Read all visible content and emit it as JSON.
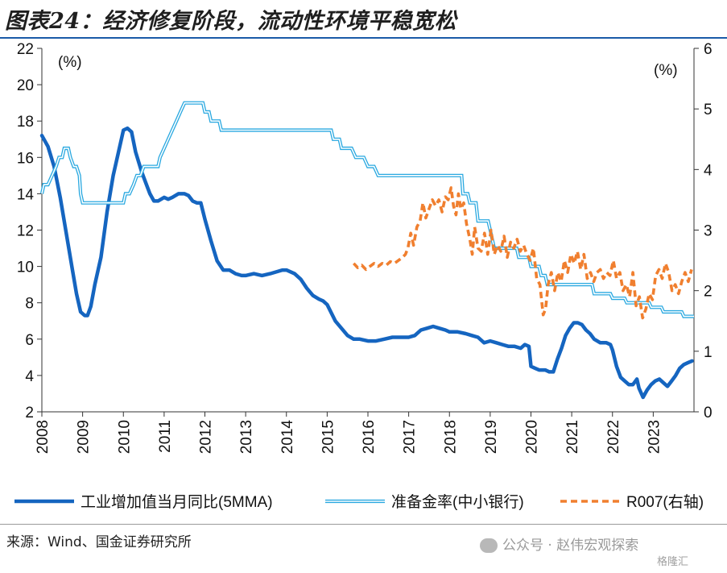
{
  "title": "图表24：经济修复阶段，流动性环境平稳宽松",
  "source": "来源：Wind、国金证券研究所",
  "watermark": "公众号 · 赵伟宏观探索",
  "watermark_logo": "格隆汇",
  "chart_data": {
    "type": "line",
    "left_unit": "(%)",
    "right_unit": "(%)",
    "left_ylim": [
      2,
      22
    ],
    "left_ticks": [
      "2",
      "4",
      "6",
      "8",
      "10",
      "12",
      "14",
      "16",
      "18",
      "20",
      "22"
    ],
    "right_ylim": [
      0,
      6
    ],
    "right_ticks": [
      "0",
      "1",
      "2",
      "3",
      "4",
      "5",
      "6"
    ],
    "x_range": [
      2008.0,
      2024.0
    ],
    "x_ticks": [
      "2008",
      "2009",
      "2010",
      "2011",
      "2012",
      "2013",
      "2014",
      "2015",
      "2016",
      "2017",
      "2018",
      "2019",
      "2020",
      "2021",
      "2022",
      "2023"
    ],
    "grid": false,
    "legend_position": "bottom",
    "colors": {
      "ip": "#1565c0",
      "rrr": "#29a8e0",
      "r007": "#f07f2f"
    },
    "series": [
      {
        "name": "工业增加值当月同比(5MMA)",
        "axis": "left",
        "style": "solid-thick",
        "x": [
          2008.0,
          2008.15,
          2008.3,
          2008.45,
          2008.6,
          2008.75,
          2008.85,
          2008.95,
          2009.05,
          2009.12,
          2009.2,
          2009.3,
          2009.45,
          2009.6,
          2009.75,
          2009.85,
          2010.0,
          2010.1,
          2010.2,
          2010.3,
          2010.45,
          2010.55,
          2010.65,
          2010.75,
          2010.85,
          2011.0,
          2011.1,
          2011.2,
          2011.35,
          2011.5,
          2011.6,
          2011.7,
          2011.8,
          2011.9,
          2012.0,
          2012.15,
          2012.3,
          2012.45,
          2012.6,
          2012.75,
          2012.9,
          2013.0,
          2013.2,
          2013.4,
          2013.6,
          2013.75,
          2013.9,
          2014.0,
          2014.2,
          2014.35,
          2014.5,
          2014.65,
          2014.8,
          2014.9,
          2015.0,
          2015.2,
          2015.35,
          2015.5,
          2015.65,
          2015.8,
          2016.0,
          2016.2,
          2016.4,
          2016.6,
          2016.8,
          2017.0,
          2017.15,
          2017.3,
          2017.45,
          2017.6,
          2017.75,
          2017.9,
          2018.0,
          2018.2,
          2018.4,
          2018.55,
          2018.7,
          2018.85,
          2019.0,
          2019.15,
          2019.3,
          2019.45,
          2019.6,
          2019.75,
          2019.85,
          2019.95,
          2020.0,
          2020.1,
          2020.2,
          2020.35,
          2020.45,
          2020.55,
          2020.65,
          2020.75,
          2020.85,
          2020.95,
          2021.05,
          2021.15,
          2021.25,
          2021.35,
          2021.45,
          2021.55,
          2021.7,
          2021.85,
          2021.95,
          2022.0,
          2022.1,
          2022.2,
          2022.3,
          2022.4,
          2022.5,
          2022.6,
          2022.65,
          2022.75,
          2022.85,
          2022.95,
          2023.05,
          2023.15,
          2023.25,
          2023.35,
          2023.45,
          2023.55,
          2023.65,
          2023.75,
          2023.85,
          2023.95
        ],
        "values": [
          17.2,
          16.6,
          15.5,
          13.8,
          11.8,
          9.8,
          8.5,
          7.5,
          7.3,
          7.3,
          7.8,
          9.0,
          10.5,
          13.0,
          15.0,
          16.0,
          17.5,
          17.6,
          17.4,
          16.3,
          15.2,
          14.6,
          14.0,
          13.6,
          13.6,
          13.8,
          13.7,
          13.8,
          14.0,
          14.0,
          13.9,
          13.6,
          13.5,
          13.5,
          12.6,
          11.4,
          10.3,
          9.8,
          9.8,
          9.6,
          9.5,
          9.5,
          9.6,
          9.5,
          9.6,
          9.7,
          9.8,
          9.8,
          9.6,
          9.3,
          8.8,
          8.4,
          8.2,
          8.1,
          7.9,
          7.0,
          6.6,
          6.2,
          6.0,
          6.0,
          5.9,
          5.9,
          6.0,
          6.1,
          6.1,
          6.1,
          6.2,
          6.5,
          6.6,
          6.7,
          6.6,
          6.5,
          6.4,
          6.4,
          6.3,
          6.2,
          6.1,
          5.8,
          5.9,
          5.8,
          5.7,
          5.6,
          5.6,
          5.5,
          5.7,
          5.6,
          4.5,
          4.4,
          4.3,
          4.3,
          4.2,
          4.2,
          4.9,
          5.5,
          6.2,
          6.6,
          6.9,
          6.9,
          6.8,
          6.5,
          6.3,
          6.0,
          5.8,
          5.8,
          5.7,
          5.4,
          4.5,
          3.9,
          3.7,
          3.5,
          3.5,
          3.8,
          3.3,
          2.8,
          3.2,
          3.5,
          3.7,
          3.8,
          3.6,
          3.4,
          3.7,
          4.0,
          4.4,
          4.6,
          4.7,
          4.8
        ]
      },
      {
        "name": "准备金率(中小银行)",
        "axis": "left",
        "style": "double-thin",
        "x": [
          2008.0,
          2008.05,
          2008.15,
          2008.25,
          2008.35,
          2008.42,
          2008.5,
          2008.55,
          2008.65,
          2008.7,
          2008.78,
          2008.85,
          2008.92,
          2008.95,
          2009.0,
          2010.0,
          2010.05,
          2010.15,
          2010.25,
          2010.33,
          2010.42,
          2010.5,
          2010.85,
          2010.9,
          2011.0,
          2011.1,
          2011.2,
          2011.3,
          2011.4,
          2011.5,
          2011.95,
          2012.0,
          2012.1,
          2012.15,
          2012.35,
          2012.4,
          2015.1,
          2015.15,
          2015.3,
          2015.35,
          2015.6,
          2015.7,
          2015.9,
          2016.0,
          2016.15,
          2016.25,
          2018.3,
          2018.33,
          2018.45,
          2018.5,
          2018.65,
          2018.7,
          2018.95,
          2019.0,
          2019.05,
          2019.1,
          2019.65,
          2019.7,
          2019.95,
          2020.0,
          2020.2,
          2020.25,
          2020.35,
          2020.4,
          2021.5,
          2021.55,
          2021.95,
          2022.0,
          2022.3,
          2022.35,
          2022.9,
          2022.95,
          2023.2,
          2023.25,
          2023.7,
          2023.75,
          2024.0
        ],
        "values": [
          14.0,
          14.5,
          14.5,
          15.0,
          15.5,
          16.0,
          16.0,
          16.5,
          16.5,
          16.0,
          15.5,
          15.5,
          15.0,
          14.0,
          13.5,
          13.5,
          14.0,
          14.0,
          14.5,
          15.0,
          15.0,
          15.5,
          15.5,
          16.0,
          16.5,
          17.0,
          17.5,
          18.0,
          18.5,
          19.0,
          19.0,
          18.5,
          18.5,
          18.0,
          18.0,
          17.5,
          17.5,
          17.0,
          17.0,
          16.5,
          16.5,
          16.0,
          16.0,
          15.5,
          15.5,
          15.0,
          15.0,
          14.0,
          14.0,
          13.5,
          13.5,
          12.5,
          12.5,
          12.0,
          11.5,
          11.0,
          11.0,
          10.5,
          10.5,
          10.0,
          10.0,
          9.5,
          9.5,
          9.0,
          9.0,
          8.5,
          8.5,
          8.25,
          8.25,
          8.0,
          8.0,
          7.75,
          7.75,
          7.5,
          7.5,
          7.25,
          7.25
        ]
      },
      {
        "name": "R007(右轴)",
        "axis": "right",
        "style": "dashed",
        "x": [
          2015.65,
          2015.75,
          2015.85,
          2015.95,
          2016.05,
          2016.15,
          2016.25,
          2016.35,
          2016.45,
          2016.55,
          2016.65,
          2016.75,
          2016.85,
          2016.92,
          2016.98,
          2017.05,
          2017.12,
          2017.2,
          2017.28,
          2017.35,
          2017.42,
          2017.5,
          2017.58,
          2017.66,
          2017.74,
          2017.82,
          2017.9,
          2017.97,
          2018.04,
          2018.1,
          2018.16,
          2018.22,
          2018.28,
          2018.35,
          2018.42,
          2018.5,
          2018.56,
          2018.62,
          2018.7,
          2018.78,
          2018.86,
          2018.94,
          2019.02,
          2019.1,
          2019.18,
          2019.26,
          2019.34,
          2019.42,
          2019.5,
          2019.58,
          2019.66,
          2019.74,
          2019.82,
          2019.9,
          2019.98,
          2020.06,
          2020.14,
          2020.22,
          2020.3,
          2020.36,
          2020.42,
          2020.5,
          2020.58,
          2020.66,
          2020.74,
          2020.82,
          2020.9,
          2020.98,
          2021.06,
          2021.14,
          2021.22,
          2021.3,
          2021.38,
          2021.46,
          2021.54,
          2021.62,
          2021.7,
          2021.78,
          2021.86,
          2021.94,
          2022.02,
          2022.1,
          2022.18,
          2022.26,
          2022.34,
          2022.42,
          2022.5,
          2022.58,
          2022.66,
          2022.74,
          2022.82,
          2022.9,
          2022.98,
          2023.06,
          2023.14,
          2023.22,
          2023.3,
          2023.38,
          2023.46,
          2023.54,
          2023.62,
          2023.7,
          2023.78,
          2023.86,
          2023.94
        ],
        "values": [
          2.45,
          2.38,
          2.42,
          2.35,
          2.4,
          2.45,
          2.4,
          2.45,
          2.42,
          2.48,
          2.45,
          2.5,
          2.55,
          2.6,
          2.7,
          2.95,
          2.75,
          3.05,
          3.15,
          3.45,
          3.2,
          3.35,
          3.5,
          3.4,
          3.5,
          3.3,
          3.55,
          3.5,
          3.7,
          3.4,
          3.25,
          3.6,
          3.35,
          3.45,
          3.1,
          2.85,
          2.6,
          3.05,
          2.7,
          2.65,
          2.95,
          2.6,
          3.0,
          2.6,
          2.75,
          2.65,
          2.9,
          2.55,
          2.8,
          2.7,
          2.85,
          2.65,
          2.75,
          2.6,
          2.5,
          2.7,
          2.2,
          2.1,
          1.6,
          1.7,
          2.1,
          2.3,
          2.0,
          2.3,
          2.15,
          2.5,
          2.3,
          2.6,
          2.45,
          2.65,
          2.35,
          2.6,
          2.2,
          2.3,
          2.15,
          2.3,
          2.35,
          2.2,
          2.3,
          2.25,
          2.5,
          2.2,
          2.3,
          2.0,
          2.1,
          1.9,
          2.3,
          1.75,
          1.9,
          1.55,
          1.7,
          1.95,
          1.85,
          2.25,
          2.35,
          2.2,
          2.45,
          2.3,
          2.0,
          2.1,
          1.95,
          2.15,
          2.3,
          2.15,
          2.35
        ]
      }
    ]
  }
}
